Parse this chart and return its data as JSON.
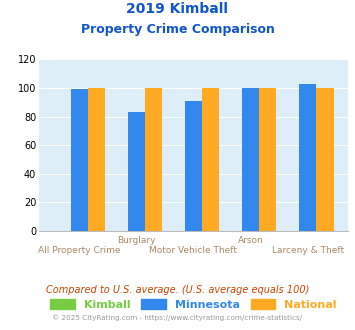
{
  "title_line1": "2019 Kimball",
  "title_line2": "Property Crime Comparison",
  "categories": [
    "All Property Crime",
    "Burglary",
    "Motor Vehicle Theft",
    "Arson",
    "Larceny & Theft"
  ],
  "kimball": [
    0,
    0,
    0,
    0,
    0
  ],
  "minnesota": [
    99,
    83,
    91,
    100,
    103
  ],
  "national": [
    100,
    100,
    100,
    100,
    100
  ],
  "color_kimball": "#77cc44",
  "color_minnesota": "#3388ee",
  "color_national": "#ffaa22",
  "ylim": [
    0,
    120
  ],
  "yticks": [
    0,
    20,
    40,
    60,
    80,
    100,
    120
  ],
  "bg_color": "#ddeef8",
  "title_color": "#1155cc",
  "label_color_top": "#aa8866",
  "label_color_bot": "#aa8866",
  "footer_text": "Compared to U.S. average. (U.S. average equals 100)",
  "copyright_text": "© 2025 CityRating.com - https://www.cityrating.com/crime-statistics/",
  "footer_color": "#cc4400",
  "copyright_color": "#999999"
}
